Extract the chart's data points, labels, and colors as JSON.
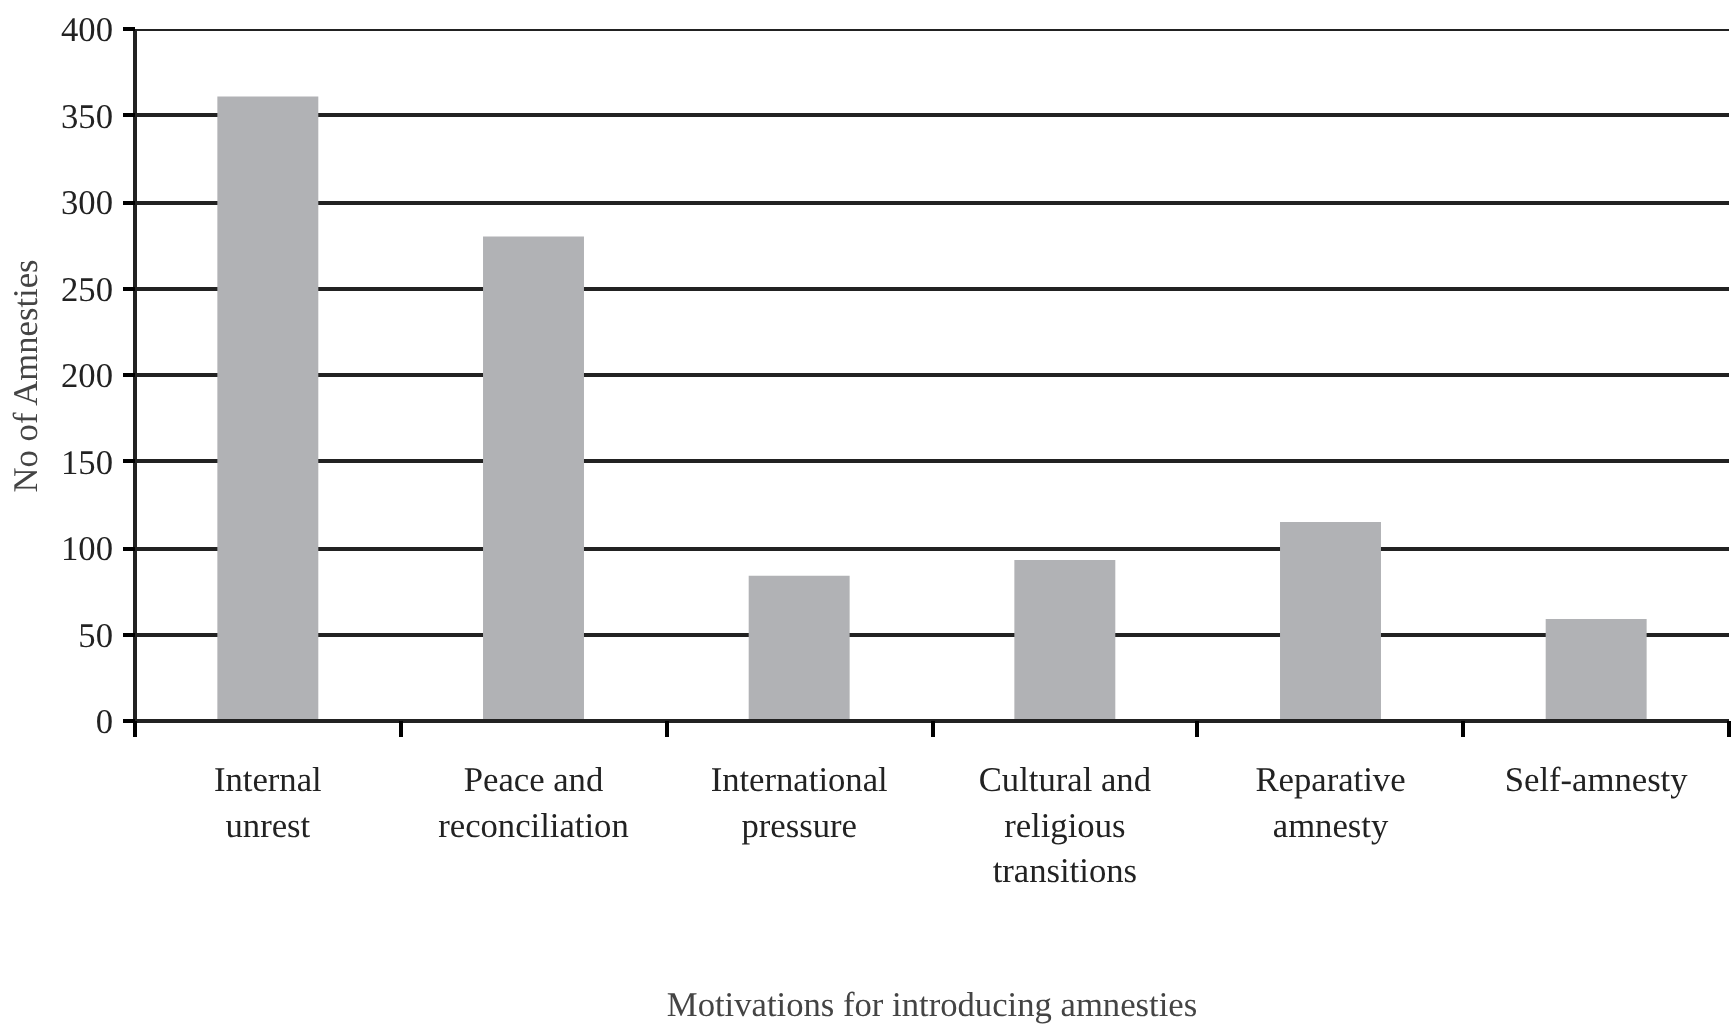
{
  "chart_data": {
    "type": "bar",
    "xlabel": "Motivations for introducing amnesties",
    "ylabel": "No of Amnesties",
    "categories": [
      "Internal unrest",
      "Peace and reconciliation",
      "International pressure",
      "Cultural and religious transitions",
      "Reparative amnesty",
      "Self-amnesty"
    ],
    "values": [
      361,
      280,
      84,
      93,
      115,
      59
    ],
    "color": "#b1b2b5",
    "ylim": [
      0,
      400
    ],
    "yticks": [
      0,
      50,
      100,
      150,
      200,
      250,
      300,
      350,
      400
    ],
    "grid": "y"
  }
}
